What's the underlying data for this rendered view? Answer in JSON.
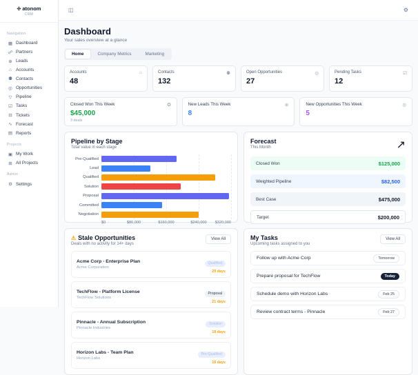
{
  "app": {
    "logo_text": "atonom",
    "logo_sub": "CRM",
    "logo_icon": "✣"
  },
  "topbar": {
    "toggle_icon": "◫",
    "theme_icon": "⚙"
  },
  "page": {
    "title": "Dashboard",
    "subtitle": "Your sales overview at a glance"
  },
  "tabs": [
    {
      "label": "Home",
      "active": true
    },
    {
      "label": "Company Metrics",
      "active": false
    },
    {
      "label": "Marketing",
      "active": false
    }
  ],
  "sidebar": {
    "sections": [
      {
        "label": "Navigation",
        "items": [
          {
            "icon": "▦",
            "label": "Dashboard"
          },
          {
            "icon": "☍",
            "label": "Partners"
          },
          {
            "icon": "⊕",
            "label": "Leads"
          },
          {
            "icon": "⌂",
            "label": "Accounts"
          },
          {
            "icon": "⚉",
            "label": "Contacts"
          },
          {
            "icon": "◎",
            "label": "Opportunities"
          },
          {
            "icon": "▽",
            "label": "Pipeline"
          },
          {
            "icon": "☑",
            "label": "Tasks"
          },
          {
            "icon": "⊟",
            "label": "Tickets"
          },
          {
            "icon": "∿",
            "label": "Forecast"
          },
          {
            "icon": "▤",
            "label": "Reports"
          }
        ]
      },
      {
        "label": "Projects",
        "items": [
          {
            "icon": "▣",
            "label": "My Work"
          },
          {
            "icon": "⊞",
            "label": "All Projects"
          }
        ]
      },
      {
        "label": "Admin",
        "items": [
          {
            "icon": "⚙",
            "label": "Settings"
          }
        ]
      }
    ]
  },
  "kpis": [
    {
      "label": "Accounts",
      "value": "48",
      "icon": "⌂"
    },
    {
      "label": "Contacts",
      "value": "132",
      "icon": "⚉"
    },
    {
      "label": "Open Opportunities",
      "value": "27",
      "icon": "◎"
    },
    {
      "label": "Pending Tasks",
      "value": "12",
      "icon": "☑"
    }
  ],
  "week_cards": [
    {
      "label": "Closed Won This Week",
      "value": "$45,000",
      "sub": "3 deals",
      "color": "#16a34a",
      "icon": "✪"
    },
    {
      "label": "New Leads This Week",
      "value": "8",
      "sub": "",
      "color": "#3b82f6",
      "icon": "⊕"
    },
    {
      "label": "New Opportunities This Week",
      "value": "5",
      "sub": "",
      "color": "#a855f7",
      "icon": "◎"
    }
  ],
  "chart_data": {
    "type": "bar",
    "orientation": "horizontal",
    "title": "Pipeline by Stage",
    "subtitle": "Total value in each stage",
    "categories": [
      "Pre-Qualified",
      "Lead",
      "Qualified",
      "Solution",
      "Proposal",
      "Committed",
      "Negotiation"
    ],
    "values": [
      185000,
      120000,
      280000,
      195000,
      315000,
      150000,
      240000
    ],
    "bar_colors": [
      "#6366f1",
      "#3b82f6",
      "#f59e0b",
      "#ef4444",
      "#6366f1",
      "#3b82f6",
      "#f59e0b"
    ],
    "xlim": [
      0,
      320000
    ],
    "x_ticks": [
      "$0",
      "$80,000",
      "$160,000",
      "$240,000",
      "$320,000"
    ],
    "grid": "dashed-vertical"
  },
  "forecast": {
    "title": "Forecast",
    "subtitle": "This Month",
    "icon": "↗",
    "rows": [
      {
        "label": "Closed Won",
        "value": "$125,000",
        "variant": "green"
      },
      {
        "label": "Weighted Pipeline",
        "value": "$82,500",
        "variant": "blue"
      },
      {
        "label": "Best Case",
        "value": "$475,000",
        "variant": "gray"
      },
      {
        "label": "Target",
        "value": "$200,000",
        "variant": "white"
      }
    ]
  },
  "stale": {
    "title": "Stale Opportunities",
    "subtitle": "Deals with no activity for 14+ days",
    "warn_icon": "⚠",
    "view_all": "View All",
    "items": [
      {
        "title": "Acme Corp - Enterprise Plan",
        "company": "Acme Corporation",
        "stage": "Qualified",
        "stage_variant": "soft",
        "days": "29 days"
      },
      {
        "title": "TechFlow - Platform License",
        "company": "TechFlow Solutions",
        "stage": "Proposal",
        "stage_variant": "slate",
        "days": "21 days"
      },
      {
        "title": "Pinnacle - Annual Subscription",
        "company": "Pinnacle Industries",
        "stage": "Solution",
        "stage_variant": "soft",
        "days": "18 days"
      },
      {
        "title": "Horizon Labs - Team Plan",
        "company": "Horizon Labs",
        "stage": "Pre-Qualified",
        "stage_variant": "soft",
        "days": "16 days"
      }
    ]
  },
  "tasks": {
    "title": "My Tasks",
    "subtitle": "Upcoming tasks assigned to you",
    "view_all": "View All",
    "items": [
      {
        "label": "Follow up with Acme Corp",
        "due": "Tomorrow",
        "due_variant": "outline"
      },
      {
        "label": "Prepare proposal for TechFlow",
        "due": "Today",
        "due_variant": "dark"
      },
      {
        "label": "Schedule demo with Horizon Labs",
        "due": "Feb 25",
        "due_variant": "outline"
      },
      {
        "label": "Review contract terms - Pinnacle",
        "due": "Feb 27",
        "due_variant": "outline"
      }
    ]
  }
}
